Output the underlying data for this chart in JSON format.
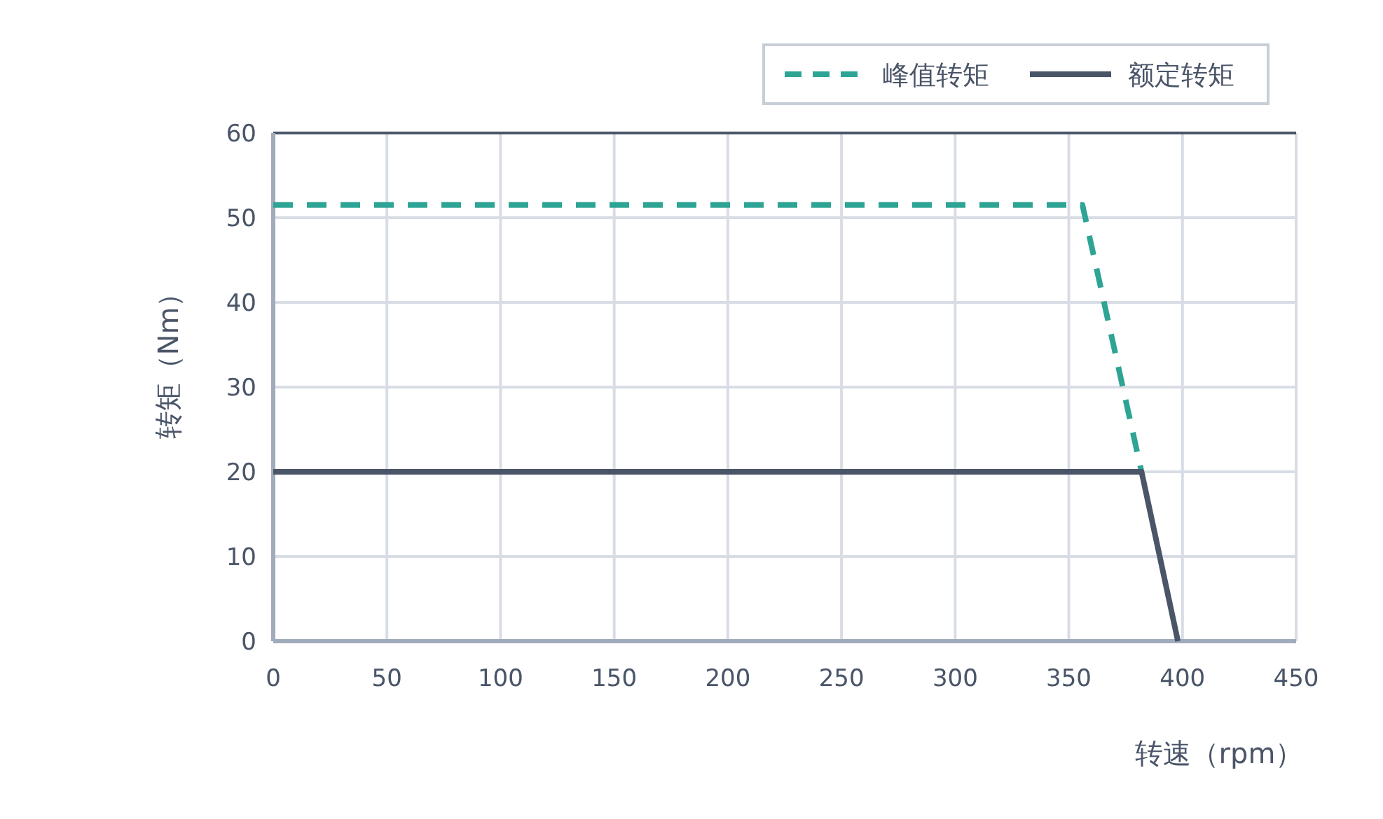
{
  "chart_data": {
    "type": "line",
    "xlabel": "转速（rpm）",
    "ylabel": "转矩（Nm）",
    "xlim": [
      0,
      450
    ],
    "ylim": [
      0,
      60
    ],
    "xticks": [
      0,
      50,
      100,
      150,
      200,
      250,
      300,
      350,
      400,
      450
    ],
    "yticks": [
      0,
      10,
      20,
      30,
      40,
      50,
      60
    ],
    "grid": true,
    "legend": "top right",
    "series": [
      {
        "name": "峰值转矩",
        "color": "#2ea495",
        "line_style": "dashed",
        "x": [
          0,
          356,
          382
        ],
        "values": [
          51.5,
          51.5,
          20
        ]
      },
      {
        "name": "额定转矩",
        "color": "#4a5568",
        "line_style": "solid",
        "x": [
          0,
          382,
          398
        ],
        "values": [
          20,
          20,
          0
        ]
      }
    ]
  }
}
